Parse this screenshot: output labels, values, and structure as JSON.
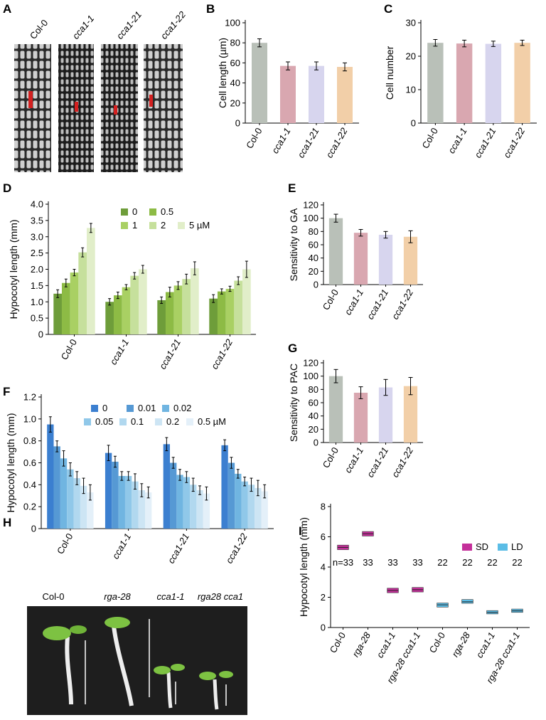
{
  "images": [
    {
      "panel": "A",
      "labels": [
        "Col-0",
        "cca1-1",
        "cca1-21",
        "cca1-22"
      ]
    },
    {
      "panel": "H",
      "labels": [
        "Col-0",
        "rga-28",
        "cca1-1",
        "rga28 cca1"
      ]
    }
  ],
  "chart_data": [
    {
      "panel": "B",
      "type": "bar",
      "y_label": "Cell length (µm)",
      "categories": [
        "Col-0",
        "cca1-1",
        "cca1-21",
        "cca1-22"
      ],
      "values": [
        80,
        57,
        57,
        56
      ],
      "errors": [
        4,
        4,
        4,
        4
      ],
      "colors": [
        "#b9c0b8",
        "#d9a7b0",
        "#d7d5ee",
        "#f2cfa8"
      ],
      "ylim": [
        0,
        100
      ],
      "yticks": [
        0,
        20,
        40,
        60,
        80,
        100
      ]
    },
    {
      "panel": "C",
      "type": "bar",
      "y_label": "Cell number",
      "categories": [
        "Col-0",
        "cca1-1",
        "cca1-21",
        "cca1-22"
      ],
      "values": [
        24,
        23.8,
        23.7,
        24
      ],
      "errors": [
        1,
        1,
        0.8,
        0.8
      ],
      "colors": [
        "#b9c0b8",
        "#d9a7b0",
        "#d7d5ee",
        "#f2cfa8"
      ],
      "ylim": [
        0,
        30
      ],
      "yticks": [
        0,
        10,
        20,
        30
      ]
    },
    {
      "panel": "D",
      "type": "bar",
      "y_label": "Hypocotyl length (mm)",
      "categories": [
        "Col-0",
        "cca1-1",
        "cca1-21",
        "cca1-22"
      ],
      "series": [
        {
          "name": "0",
          "color": "#6e9d3a",
          "values": [
            1.25,
            1.0,
            1.05,
            1.1
          ],
          "errors": [
            0.12,
            0.1,
            0.1,
            0.12
          ]
        },
        {
          "name": "0.5",
          "color": "#8dbb45",
          "values": [
            1.58,
            1.2,
            1.3,
            1.32
          ],
          "errors": [
            0.12,
            0.1,
            0.15,
            0.08
          ]
        },
        {
          "name": "1",
          "color": "#a9d063",
          "values": [
            1.9,
            1.45,
            1.5,
            1.4
          ],
          "errors": [
            0.1,
            0.08,
            0.12,
            0.08
          ]
        },
        {
          "name": "2",
          "color": "#c6e09c",
          "values": [
            2.52,
            1.8,
            1.7,
            1.65
          ],
          "errors": [
            0.14,
            0.1,
            0.15,
            0.12
          ]
        },
        {
          "name": "5 µM",
          "color": "#e1eec9",
          "values": [
            3.27,
            2.0,
            2.03,
            2.0
          ],
          "errors": [
            0.14,
            0.12,
            0.2,
            0.25
          ]
        }
      ],
      "ylim": [
        0,
        4
      ],
      "yticks": [
        0,
        0.5,
        {
          "value": 1,
          "label": "1.0"
        },
        1.5,
        {
          "value": 2,
          "label": "2.0"
        },
        2.5,
        {
          "value": 3,
          "label": "3.0"
        },
        3.5,
        {
          "value": 4,
          "label": "4.0"
        }
      ]
    },
    {
      "panel": "E",
      "type": "bar",
      "y_label": "Sensitivity to GA",
      "categories": [
        "Col-0",
        "cca1-1",
        "cca1-21",
        "cca1-22"
      ],
      "values": [
        100,
        78,
        75,
        72
      ],
      "errors": [
        6,
        5,
        5,
        9
      ],
      "colors": [
        "#b9c0b8",
        "#d9a7b0",
        "#d7d5ee",
        "#f2cfa8"
      ],
      "ylim": [
        0,
        120
      ],
      "yticks": [
        0,
        20,
        40,
        60,
        80,
        100,
        120
      ]
    },
    {
      "panel": "F",
      "type": "bar",
      "y_label": "Hypocotyl length (mm)",
      "categories": [
        "Col-0",
        "cca1-1",
        "cca1-21",
        "cca1-22"
      ],
      "series": [
        {
          "name": "0",
          "color": "#3b7fd0",
          "values": [
            0.95,
            0.69,
            0.77,
            0.76
          ],
          "errors": [
            0.07,
            0.07,
            0.06,
            0.05
          ]
        },
        {
          "name": "0.01",
          "color": "#5699d4",
          "values": [
            0.75,
            0.61,
            0.6,
            0.6
          ],
          "errors": [
            0.05,
            0.05,
            0.05,
            0.05
          ]
        },
        {
          "name": "0.02",
          "color": "#70b5e1",
          "values": [
            0.64,
            0.48,
            0.49,
            0.5
          ],
          "errors": [
            0.07,
            0.04,
            0.05,
            0.04
          ]
        },
        {
          "name": "0.05",
          "color": "#90c8e9",
          "values": [
            0.54,
            0.48,
            0.47,
            0.43
          ],
          "errors": [
            0.06,
            0.04,
            0.05,
            0.04
          ]
        },
        {
          "name": "0.1",
          "color": "#b1d8ef",
          "values": [
            0.46,
            0.43,
            0.4,
            0.4
          ],
          "errors": [
            0.06,
            0.07,
            0.06,
            0.06
          ]
        },
        {
          "name": "0.2",
          "color": "#cde5f4",
          "values": [
            0.39,
            0.35,
            0.35,
            0.37
          ],
          "errors": [
            0.07,
            0.06,
            0.04,
            0.07
          ]
        },
        {
          "name": "0.5 µM",
          "color": "#e4f0f9",
          "values": [
            0.33,
            0.33,
            0.32,
            0.34
          ],
          "errors": [
            0.07,
            0.05,
            0.06,
            0.06
          ]
        }
      ],
      "ylim": [
        0,
        1.2
      ],
      "yticks": [
        0,
        0.2,
        0.4,
        0.6,
        0.8,
        {
          "value": 1,
          "label": "1.0"
        },
        1.2
      ]
    },
    {
      "panel": "G",
      "type": "bar",
      "y_label": "Sensitivity to PAC",
      "categories": [
        "Col-0",
        "cca1-1",
        "cca1-21",
        "cca1-22"
      ],
      "values": [
        100,
        75,
        83,
        85
      ],
      "errors": [
        10,
        9,
        12,
        13
      ],
      "colors": [
        "#b9c0b8",
        "#d9a7b0",
        "#d7d5ee",
        "#f2cfa8"
      ],
      "ylim": [
        0,
        120
      ],
      "yticks": [
        0,
        20,
        40,
        60,
        80,
        100,
        120
      ]
    },
    {
      "panel": "I",
      "type": "box",
      "y_label": "Hypocotyl length (mm)",
      "categories": [
        "Col-0",
        "rga-28",
        "cca1-1",
        "rga-28 cca1-1",
        "Col-0",
        "rga-28",
        "cca1-1",
        "rga-28 cca1-1"
      ],
      "annotations": [
        "n=33",
        "33",
        "33",
        "33",
        "22",
        "22",
        "22",
        "22"
      ],
      "series": [
        {
          "name": "SD",
          "color": "#c42f9a",
          "values": [
            5.3,
            6.2,
            2.45,
            2.5,
            null,
            null,
            null,
            null
          ],
          "q1": [
            5.15,
            6.05,
            2.3,
            2.35,
            null,
            null,
            null,
            null
          ],
          "q3": [
            5.45,
            6.35,
            2.6,
            2.65,
            null,
            null,
            null,
            null
          ]
        },
        {
          "name": "LD",
          "color": "#5bbde6",
          "values": [
            null,
            null,
            null,
            null,
            1.5,
            1.7,
            1.0,
            1.1
          ],
          "q1": [
            null,
            null,
            null,
            null,
            1.35,
            1.6,
            0.9,
            1.0
          ],
          "q3": [
            null,
            null,
            null,
            null,
            1.62,
            1.85,
            1.12,
            1.22
          ]
        }
      ],
      "ylim": [
        0,
        8
      ],
      "yticks": [
        0,
        2,
        4,
        6,
        8
      ]
    }
  ]
}
